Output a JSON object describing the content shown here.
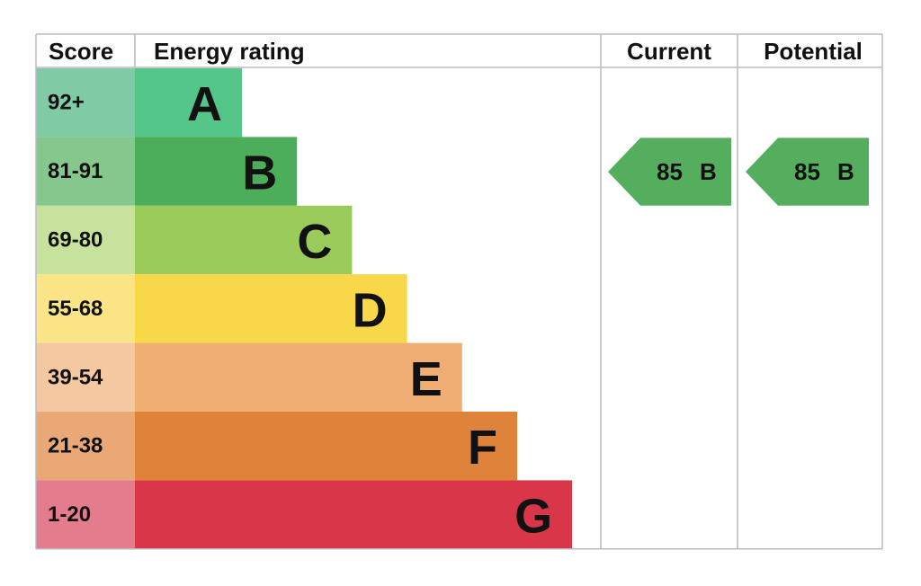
{
  "header": {
    "score": "Score",
    "rating": "Energy rating",
    "current": "Current",
    "potential": "Potential"
  },
  "bands": [
    {
      "score": "92+",
      "letter": "A",
      "color": "#55c68a",
      "light": "#80cba5"
    },
    {
      "score": "81-91",
      "letter": "B",
      "color": "#4cae5b",
      "light": "#86c78e"
    },
    {
      "score": "69-80",
      "letter": "C",
      "color": "#9bcb5a",
      "light": "#c6e29c"
    },
    {
      "score": "55-68",
      "letter": "D",
      "color": "#f8d748",
      "light": "#fbe586"
    },
    {
      "score": "39-54",
      "letter": "E",
      "color": "#f0ae72",
      "light": "#f4c8a1"
    },
    {
      "score": "21-38",
      "letter": "F",
      "color": "#e0833a",
      "light": "#e9a876"
    },
    {
      "score": "1-20",
      "letter": "G",
      "color": "#d9364a",
      "light": "#e57c8d"
    }
  ],
  "current": {
    "value": 85,
    "letter": "B"
  },
  "potential": {
    "value": 85,
    "letter": "B"
  },
  "arrow_color": "#55ae5e"
}
